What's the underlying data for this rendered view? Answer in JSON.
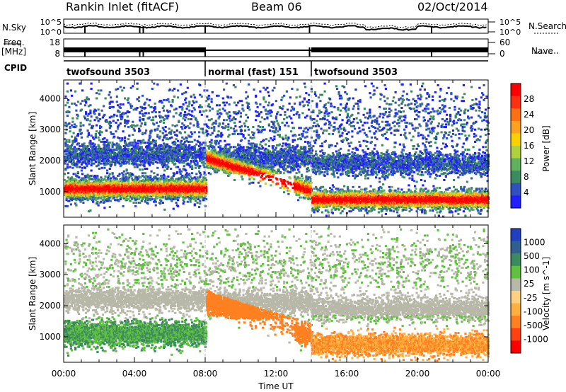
{
  "header": {
    "station": "Rankin Inlet (fitACF)",
    "beam": "Beam 06",
    "date": "02/Oct/2014"
  },
  "side_labels": {
    "nsky": "N.Sky",
    "freq_line1": "Freq.",
    "freq_line2": "[MHz]",
    "cpid": "CPID",
    "nsearch": "N.Search",
    "nave": "Nave"
  },
  "colors": {
    "power_scale": [
      "#2020ff",
      "#3050c0",
      "#3c8a60",
      "#60b060",
      "#b0d040",
      "#ffd000",
      "#ffa020",
      "#ff7010",
      "#ff3010",
      "#ff0000"
    ],
    "velocity_scale": [
      "#2040c0",
      "#306090",
      "#3c8a60",
      "#60c040",
      "#b8b8a8",
      "#ffd080",
      "#ffb040",
      "#ff8020",
      "#ff4010",
      "#ff0000"
    ]
  },
  "chart_data": [
    {
      "type": "line",
      "name": "noise-panel",
      "left_axis": {
        "label": "N.Sky",
        "ticks": [
          "10^5",
          "10^0"
        ]
      },
      "right_axis": {
        "label": "N.Search",
        "ticks": [
          "10^5",
          "10^0"
        ]
      },
      "grid": false
    },
    {
      "type": "line",
      "name": "frequency-panel",
      "left_axis": {
        "label": "Freq. [MHz]",
        "ticks": [
          "18",
          "8"
        ]
      },
      "right_axis": {
        "label": "Nave",
        "ticks": [
          "60",
          "0"
        ]
      },
      "grid": false
    },
    {
      "type": "table",
      "name": "cpid-panel",
      "label": "CPID",
      "segments": [
        {
          "start": "00:00",
          "end": "08:00",
          "text": "twofsound 3503"
        },
        {
          "start": "08:00",
          "end": "14:00",
          "text": "normal (fast) 151"
        },
        {
          "start": "14:00",
          "end": "24:00",
          "text": "twofsound 3503"
        }
      ]
    },
    {
      "type": "heatmap",
      "name": "power-panel",
      "ylabel": "Slant Range [km]",
      "yticks": [
        "1000",
        "2000",
        "3000",
        "4000"
      ],
      "ylim": [
        180,
        4600
      ],
      "xlim": [
        "00:00",
        "24:00"
      ],
      "colorbar": {
        "label": "Power [dB]",
        "ticks": [
          "4",
          "8",
          "12",
          "16",
          "20",
          "24",
          "28"
        ]
      }
    },
    {
      "type": "heatmap",
      "name": "velocity-panel",
      "xlabel": "Time UT",
      "xticks": [
        "00:00",
        "04:00",
        "08:00",
        "12:00",
        "16:00",
        "20:00",
        "00:00"
      ],
      "ylabel": "Slant Range [km]",
      "yticks": [
        "1000",
        "2000",
        "3000",
        "4000"
      ],
      "ylim": [
        180,
        4600
      ],
      "xlim": [
        "00:00",
        "24:00"
      ],
      "colorbar": {
        "label": "Velocity [m s^-1]",
        "ticks": [
          "1000",
          "500",
          "100",
          "25",
          "-25",
          "-100",
          "-500",
          "-1000"
        ]
      }
    }
  ]
}
